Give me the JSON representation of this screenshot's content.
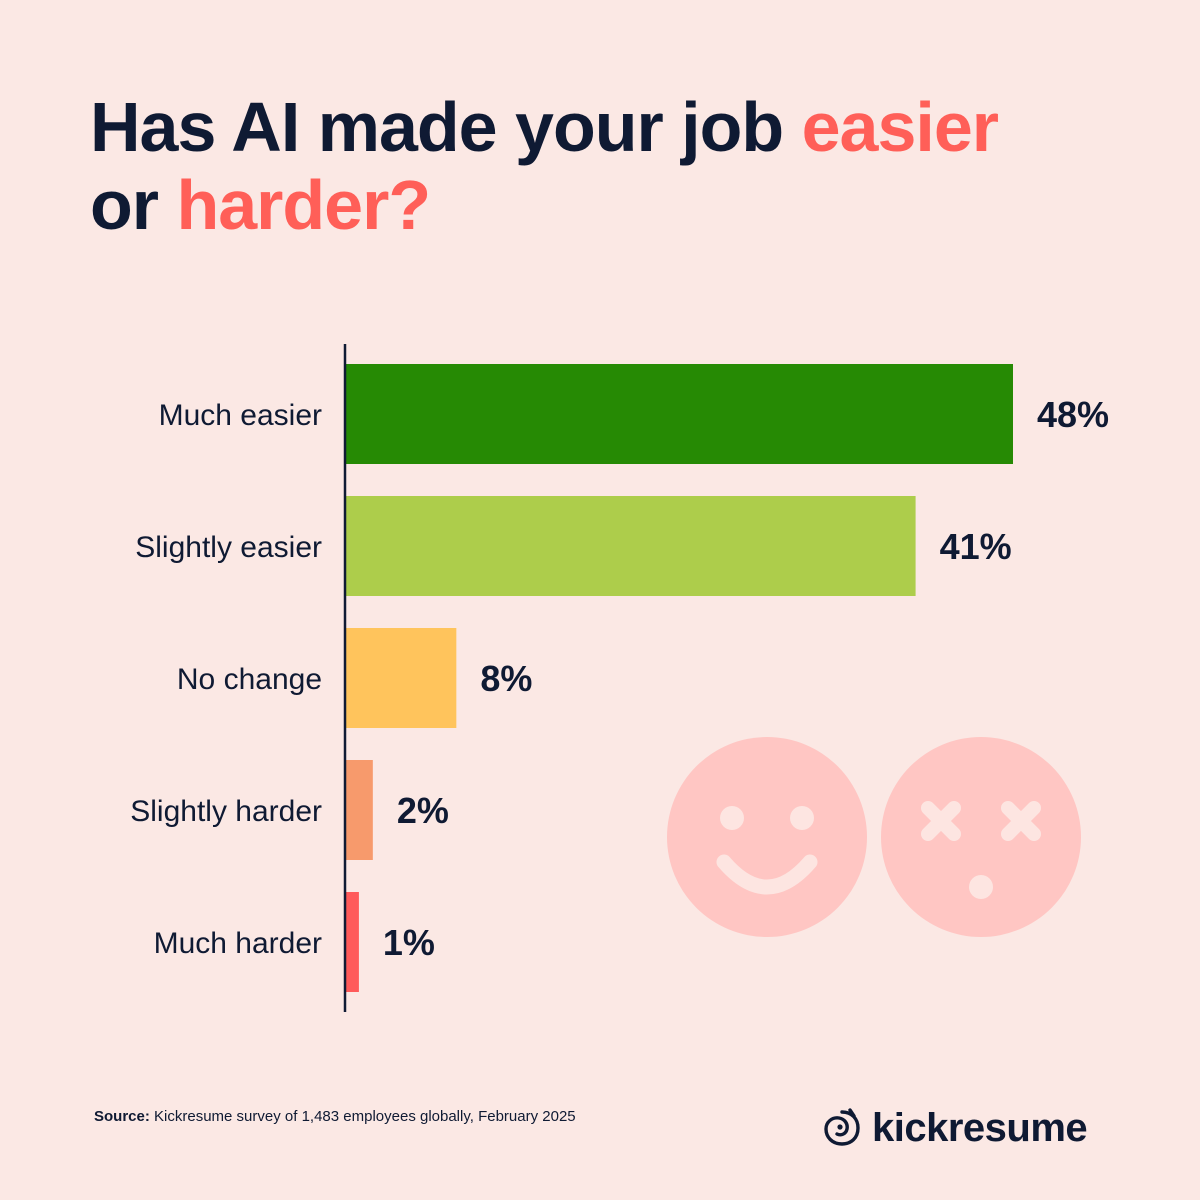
{
  "title": {
    "part1": "Has AI made your job ",
    "highlight1": "easier",
    "part2": " or ",
    "highlight2": "harder?"
  },
  "chart_data": {
    "type": "bar",
    "orientation": "horizontal",
    "title": "Has AI made your job easier or harder?",
    "categories": [
      "Much easier",
      "Slightly easier",
      "No change",
      "Slightly harder",
      "Much harder"
    ],
    "values": [
      48,
      41,
      8,
      2,
      1
    ],
    "value_labels": [
      "48%",
      "41%",
      "8%",
      "2%",
      "1%"
    ],
    "unit": "%",
    "colors": [
      "#268a04",
      "#adcd4b",
      "#ffc45c",
      "#f79a6c",
      "#ff5a5a"
    ],
    "xlim": [
      0,
      48
    ],
    "grid": false,
    "legend": "none"
  },
  "decorations": {
    "faces": [
      "smiley-face-icon",
      "dizzy-face-icon"
    ],
    "face_color": "#ffc6c3"
  },
  "footer": {
    "source_label": "Source:",
    "source_text": " Kickresume survey of 1,483 employees globally, February 2025",
    "brand_name": "kickresume",
    "brand_icon": "kickresume-logo-icon"
  }
}
